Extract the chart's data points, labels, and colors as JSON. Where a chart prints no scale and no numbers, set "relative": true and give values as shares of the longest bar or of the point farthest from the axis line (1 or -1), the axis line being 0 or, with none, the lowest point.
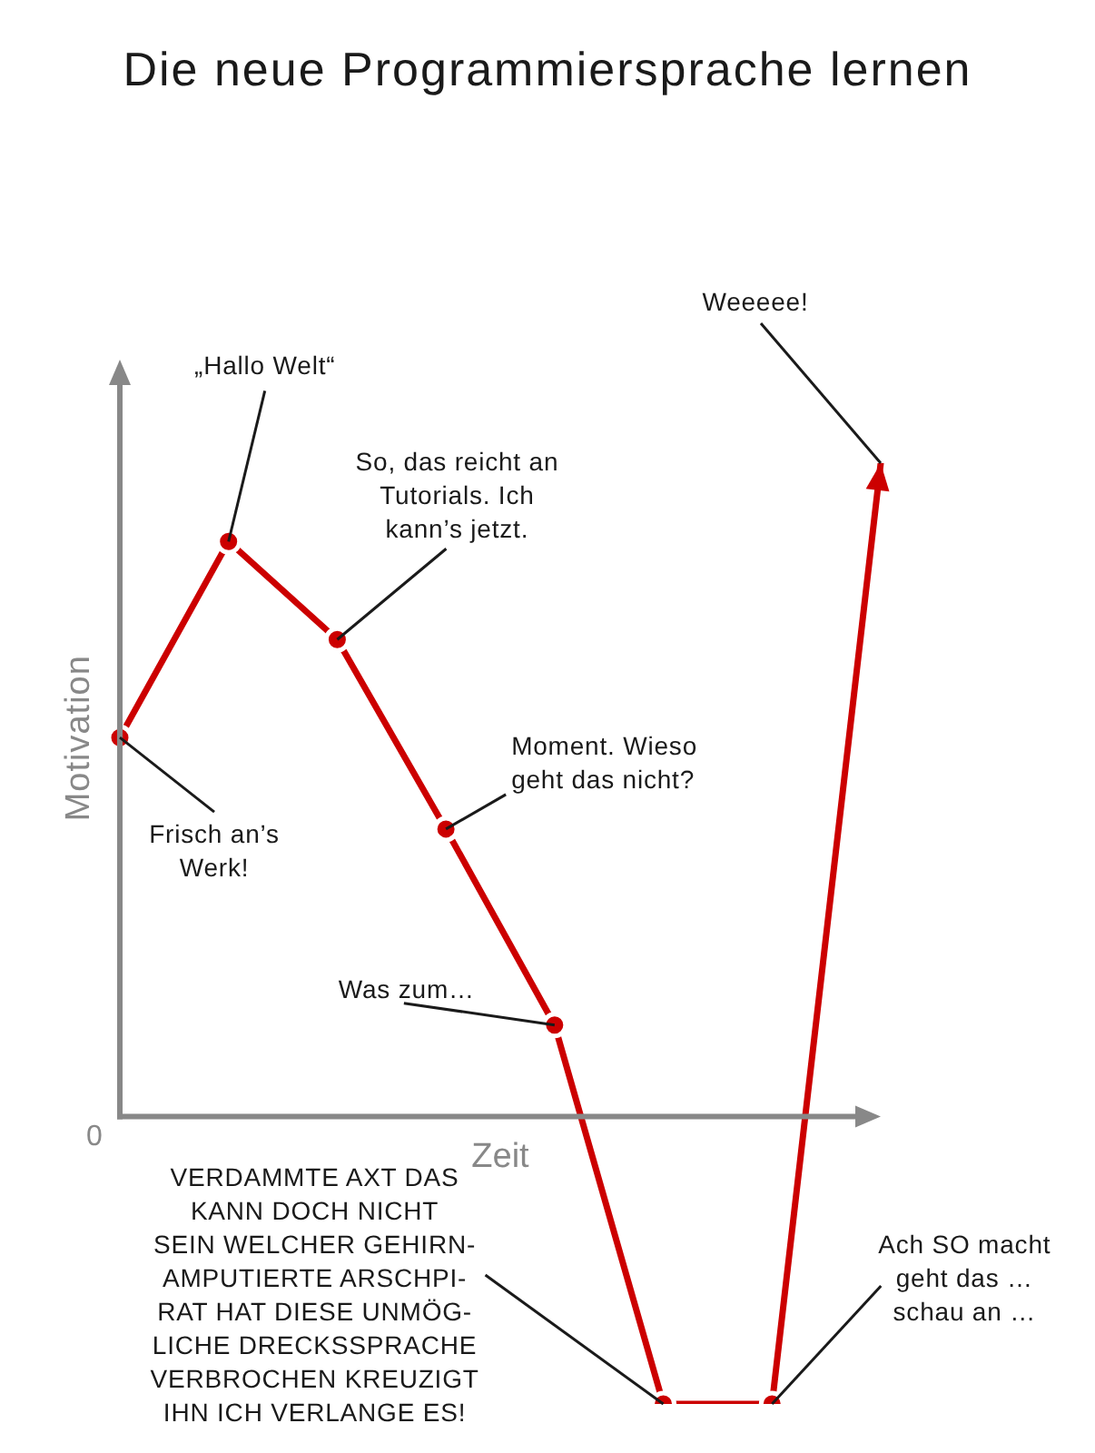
{
  "chart_data": {
    "type": "line",
    "title": "Die neue Programmiersprache lernen",
    "xlabel": "Zeit",
    "ylabel": "Motivation",
    "categories": [
      null,
      null,
      null,
      null,
      null,
      null,
      null,
      null
    ],
    "series": [
      {
        "color": "#cc0000",
        "values": [
          0.58,
          0.88,
          0.73,
          0.44,
          0.14,
          -0.44,
          -0.44,
          1
        ]
      }
    ],
    "relative": true,
    "marker": "circle",
    "line_style": "solid",
    "annotations": [
      "Frisch an’s\nWerk!",
      "„Hallo Welt“",
      "So, das reicht an\nTutorials. Ich\nkann’s jetzt.",
      "Moment. Wieso\ngeht das nicht?",
      "Was zum…",
      "VERDAMMTE AXT DAS\nKANN DOCH NICHT\nSEIN WELCHER GEHIRN-\nAMPUTIERTE ARSCHPI-\nRAT HAT DIESE UNMÖG-\nLICHE DRECKSSPRACHE\nVERBROCHEN KREUZIGT\nIHN ICH VERLANGE ES!",
      "Ach SO macht\ngeht das …\nschau an …",
      "Weeeee!",
      "0"
    ]
  }
}
